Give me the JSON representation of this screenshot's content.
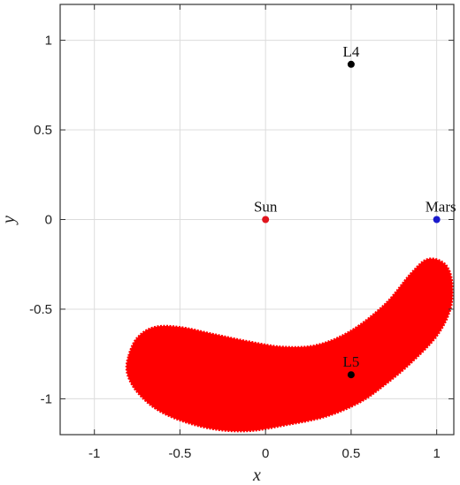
{
  "chart_data": {
    "type": "scatter",
    "xlabel": "x",
    "ylabel": "y",
    "xlim": [
      -1.2,
      1.1
    ],
    "ylim": [
      -1.2,
      1.2
    ],
    "xticks": [
      -1,
      -0.5,
      0,
      0.5,
      1
    ],
    "yticks": [
      1,
      0.5,
      0,
      -0.5,
      -1
    ],
    "grid": true,
    "points": [
      {
        "label": "L4",
        "x": 0.5,
        "y": 0.866,
        "color": "#000000"
      },
      {
        "label": "Sun",
        "x": 0,
        "y": 0,
        "color": "#e0151d"
      },
      {
        "label": "Mars",
        "x": 1,
        "y": 0,
        "color": "#1a1acc"
      },
      {
        "label": "L5",
        "x": 0.5,
        "y": -0.866,
        "color": "#000000"
      }
    ],
    "region": {
      "color": "#ff0000",
      "boundary": [
        [
          -0.8,
          -0.76
        ],
        [
          -0.75,
          -0.66
        ],
        [
          -0.65,
          -0.6
        ],
        [
          -0.5,
          -0.6
        ],
        [
          -0.3,
          -0.64
        ],
        [
          -0.1,
          -0.68
        ],
        [
          0.1,
          -0.71
        ],
        [
          0.3,
          -0.7
        ],
        [
          0.5,
          -0.62
        ],
        [
          0.7,
          -0.47
        ],
        [
          0.85,
          -0.3
        ],
        [
          0.95,
          -0.22
        ],
        [
          1.05,
          -0.25
        ],
        [
          1.09,
          -0.35
        ],
        [
          1.08,
          -0.5
        ],
        [
          1.0,
          -0.65
        ],
        [
          0.85,
          -0.8
        ],
        [
          0.7,
          -0.92
        ],
        [
          0.55,
          -1.02
        ],
        [
          0.35,
          -1.1
        ],
        [
          0.1,
          -1.15
        ],
        [
          -0.1,
          -1.18
        ],
        [
          -0.3,
          -1.17
        ],
        [
          -0.5,
          -1.12
        ],
        [
          -0.65,
          -1.05
        ],
        [
          -0.76,
          -0.95
        ],
        [
          -0.81,
          -0.85
        ]
      ]
    }
  }
}
